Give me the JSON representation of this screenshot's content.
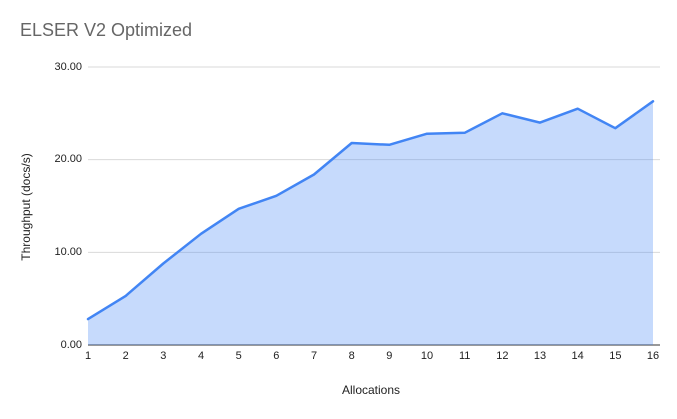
{
  "chart": {
    "title": "ELSER V2 Optimized",
    "xlabel": "Allocations",
    "ylabel": "Throughput (docs/s)"
  },
  "chart_data": {
    "type": "area",
    "title": "ELSER V2 Optimized",
    "xlabel": "Allocations",
    "ylabel": "Throughput (docs/s)",
    "x": [
      1,
      2,
      3,
      4,
      5,
      6,
      7,
      8,
      9,
      10,
      11,
      12,
      13,
      14,
      15,
      16
    ],
    "values": [
      2.8,
      5.3,
      8.8,
      12.0,
      14.7,
      16.1,
      18.4,
      21.8,
      21.6,
      22.8,
      22.9,
      25.0,
      24.0,
      25.5,
      23.4,
      26.3
    ],
    "xlim": [
      1,
      16
    ],
    "ylim": [
      0,
      30
    ],
    "yticks": [
      0,
      10,
      20,
      30
    ],
    "ytick_labels": [
      "0.00",
      "10.00",
      "20.00",
      "30.00"
    ],
    "xtick_labels": [
      "1",
      "2",
      "3",
      "4",
      "5",
      "6",
      "7",
      "8",
      "9",
      "10",
      "11",
      "12",
      "13",
      "14",
      "15",
      "16"
    ],
    "grid": true,
    "legend": "none",
    "colors": {
      "line": "#4285f4",
      "area_fill": "rgba(66,133,244,0.3)",
      "gridline": "#dadada",
      "axis_line": "#333333",
      "title_text": "#666666",
      "tick_text": "#222222"
    }
  }
}
